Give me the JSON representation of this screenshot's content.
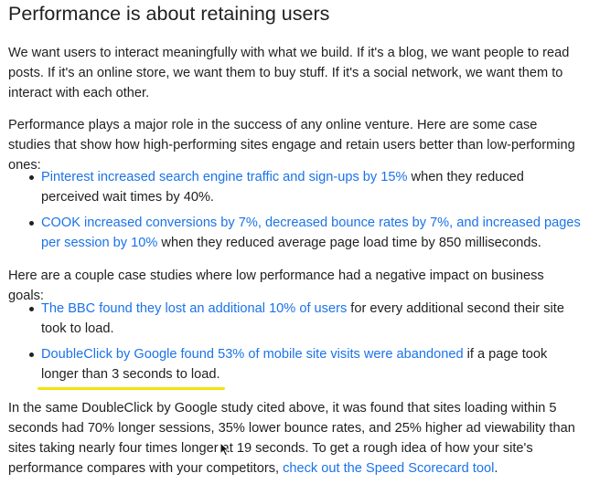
{
  "heading": "Performance is about retaining users",
  "intro_paragraph": "We want users to interact meaningfully with what we build. If it's a blog, we want people to read posts. If it's an online store, we want them to buy stuff. If it's a social network, we want them to interact with each other.",
  "case_studies_intro": "Performance plays a major role in the success of any online venture. Here are some case studies that show how high-performing sites engage and retain users better than low-performing ones:",
  "positive_cases": [
    {
      "link": "Pinterest increased search engine traffic and sign-ups by 15%",
      "text": " when they reduced perceived wait times by 40%."
    },
    {
      "link": "COOK increased conversions by 7%, decreased bounce rates by 7%, and increased pages per session by 10%",
      "text": " when they reduced average page load time by 850 milliseconds."
    }
  ],
  "negative_intro": "Here are a couple case studies where low performance had a negative impact on business goals:",
  "negative_cases": [
    {
      "link": "The BBC found they lost an additional 10% of users",
      "text": " for every additional second their site took to load."
    },
    {
      "link": "DoubleClick by Google found 53% of mobile site visits were abandoned",
      "text": " if a page took longer than 3 seconds to load."
    }
  ],
  "closing_paragraph": {
    "text": "In the same DoubleClick by Google study cited above, it was found that sites loading within 5 seconds had 70% longer sessions, 35% lower bounce rates, and 25% higher ad viewability than sites taking nearly four times longer at 19 seconds. To get a rough idea of how your site's performance compares with your competitors, ",
    "link": "check out the Speed Scorecard tool",
    "end": "."
  },
  "colors": {
    "text": "#202124",
    "link": "#1a73e8",
    "highlight": "#f2e30c"
  },
  "icons": {
    "cursor": "mouse-pointer-icon"
  }
}
